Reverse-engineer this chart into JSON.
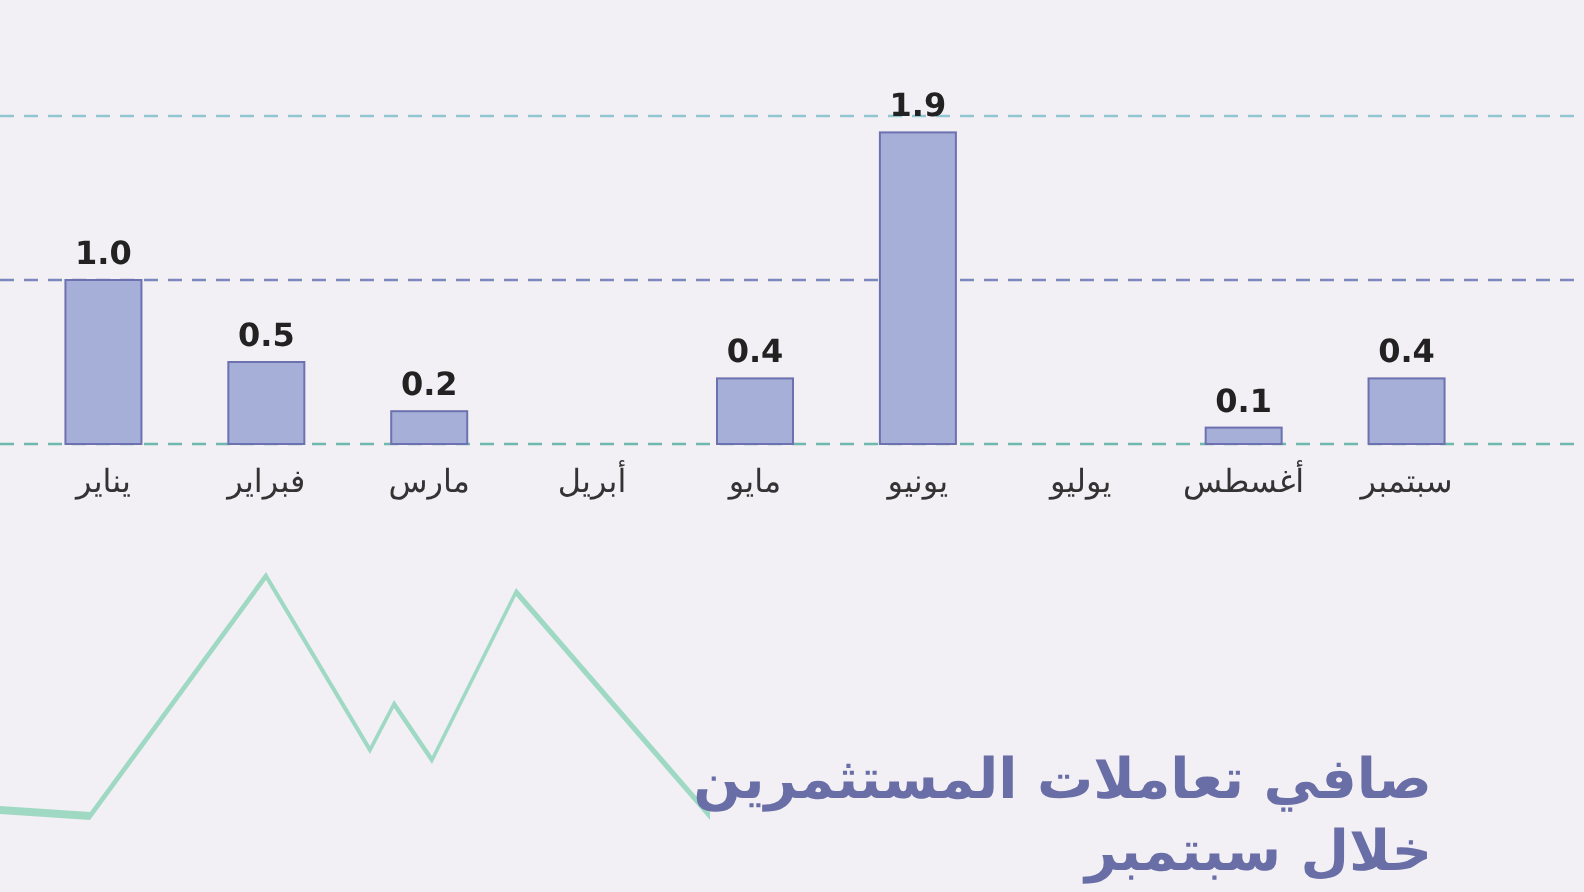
{
  "chart_data": {
    "type": "bar",
    "title": "صافي تعاملات المستثمرين خلال سبتمبر",
    "categories": [
      "يناير",
      "فبراير",
      "مارس",
      "أبريل",
      "مايو",
      "يونيو",
      "يوليو",
      "أغسطس",
      "سبتمبر"
    ],
    "values": [
      1.0,
      0.5,
      0.2,
      null,
      0.4,
      1.9,
      null,
      0.1,
      0.4
    ],
    "value_labels": [
      "1.0",
      "0.5",
      "0.2",
      null,
      "0.4",
      "1.9",
      null,
      "0.1",
      "0.4"
    ],
    "color": "#a5afd8",
    "ref_lines": [
      {
        "axis": "y",
        "value": 0,
        "label": null,
        "color": "#6fb8ae",
        "line_style": "dashed"
      },
      {
        "axis": "y",
        "value": 1,
        "label": null,
        "color": "#7d86bd",
        "line_style": "dashed"
      },
      {
        "axis": "y",
        "value": 2,
        "label": null,
        "color": "#8fc6cf",
        "line_style": "dashed"
      }
    ]
  }
}
